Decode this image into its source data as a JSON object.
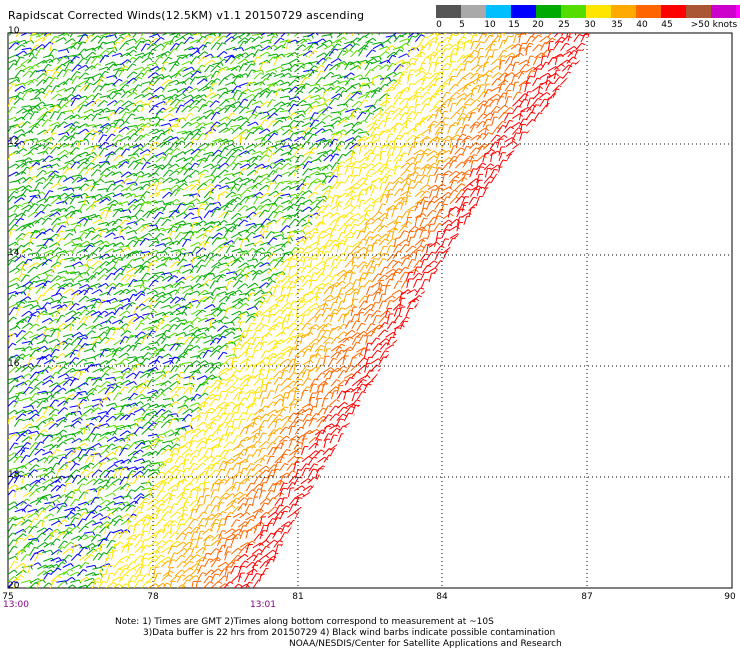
{
  "title": "Rapidscat Corrected Winds(12.5KM) v1.1 20150729 ascending",
  "legend": {
    "labels": [
      "0",
      "5",
      "10",
      "15",
      "20",
      "25",
      "30",
      "35",
      "40",
      "45",
      ">50 knots"
    ],
    "colors": [
      "#555555",
      "#a9a9a9",
      "#00bfff",
      "#0000ff",
      "#00aa00",
      "#55dd00",
      "#ffe600",
      "#ffaa00",
      "#ff6600",
      "#ff0000",
      "#aa5533",
      "#cc00cc",
      "#ff00ff",
      "#8800cc"
    ]
  },
  "axes": {
    "lat_labels": [
      "10",
      "12",
      "14",
      "16",
      "18",
      "20"
    ],
    "lon_labels": [
      "75",
      "78",
      "81",
      "84",
      "87",
      "90"
    ]
  },
  "times": {
    "left": "13:00",
    "mid": "13:01"
  },
  "notes": {
    "line1": "Note: 1) Times are GMT 2)Times along bottom correspond to measurement at ~10S",
    "line2": "3)Data buffer is 22 hrs from 20150729 4) Black wind barbs indicate possible contamination",
    "line3": "NOAA/NESDIS/Center for Satellite Applications and Research"
  }
}
